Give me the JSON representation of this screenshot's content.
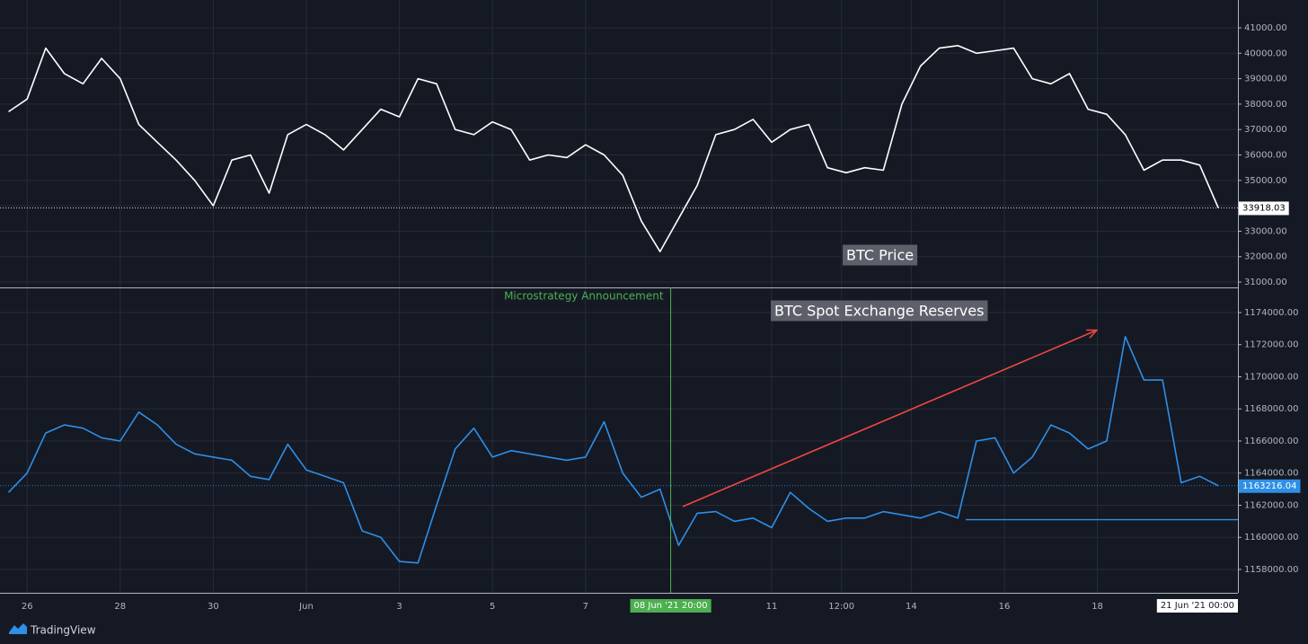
{
  "chart_data": [
    {
      "type": "line",
      "x": [
        -0.4,
        0,
        0.4,
        0.8,
        1.2,
        1.6,
        2,
        2.4,
        2.8,
        3.2,
        3.6,
        4,
        4.4,
        4.8,
        5.2,
        5.6,
        6,
        6.4,
        6.8,
        7.2,
        7.6,
        8,
        8.4,
        8.8,
        9.2,
        9.6,
        10,
        10.4,
        10.8,
        11.2,
        11.6,
        12,
        12.4,
        12.8,
        13.2,
        13.6,
        14,
        14.4,
        14.8,
        15.2,
        15.6,
        16,
        16.4,
        16.8,
        17.2,
        17.6,
        18,
        18.4,
        18.8,
        19.2,
        19.6,
        20,
        20.4,
        20.8,
        21.2,
        21.6,
        22,
        22.4,
        22.8,
        23.2,
        23.6,
        24,
        24.4,
        24.8,
        25.2,
        25.6
      ],
      "series": [
        {
          "name": "BTC Price",
          "color": "#ffffff",
          "values": [
            37700,
            38200,
            40200,
            39200,
            38800,
            39800,
            39000,
            37200,
            36500,
            35800,
            35000,
            34000,
            35800,
            36000,
            34500,
            36800,
            37200,
            36800,
            36200,
            37000,
            37800,
            37500,
            39000,
            38800,
            37000,
            36800,
            37300,
            37000,
            35800,
            36000,
            35900,
            36400,
            36000,
            35200,
            33400,
            32200,
            33500,
            34800,
            36800,
            37000,
            37400,
            36500,
            37000,
            37200,
            35500,
            35300,
            35500,
            35400,
            38000,
            39500,
            40200,
            40300,
            40000,
            40100,
            40200,
            39000,
            38800,
            39200,
            37800,
            37600,
            36800,
            35400,
            35800,
            35800,
            35600,
            33918.03
          ]
        }
      ],
      "xlim": [
        -0.39,
        26.02
      ],
      "ylim": [
        30790,
        42095
      ],
      "yticks": [
        {
          "value": 31000,
          "label": "31000.00"
        },
        {
          "value": 32000,
          "label": "32000.00"
        },
        {
          "value": 33000,
          "label": "33000.00"
        },
        {
          "value": 34000,
          "label": "34000.00"
        },
        {
          "value": 35000,
          "label": "35000.00"
        },
        {
          "value": 36000,
          "label": "36000.00"
        },
        {
          "value": 37000,
          "label": "37000.00"
        },
        {
          "value": 38000,
          "label": "38000.00"
        },
        {
          "value": 39000,
          "label": "39000.00"
        },
        {
          "value": 40000,
          "label": "40000.00"
        },
        {
          "value": 41000,
          "label": "41000.00"
        }
      ],
      "grid": true
    },
    {
      "type": "line",
      "x": [
        -0.4,
        0,
        0.4,
        0.8,
        1.2,
        1.6,
        2,
        2.4,
        2.8,
        3.2,
        3.6,
        4,
        4.4,
        4.8,
        5.2,
        5.6,
        6,
        6.4,
        6.8,
        7.2,
        7.6,
        8,
        8.4,
        8.8,
        9.2,
        9.6,
        10,
        10.4,
        10.8,
        11.2,
        11.6,
        12,
        12.4,
        12.8,
        13.2,
        13.6,
        14,
        14.4,
        14.8,
        15.2,
        15.6,
        16,
        16.4,
        16.8,
        17.2,
        17.6,
        18,
        18.4,
        18.8,
        19.2,
        19.6,
        20,
        20.4,
        20.8,
        21.2,
        21.6,
        22,
        22.4,
        22.8,
        23.2,
        23.6,
        24,
        24.4,
        24.8,
        25.2,
        25.6
      ],
      "series": [
        {
          "name": "BTC Spot Exchange Reserves",
          "color": "#2e8fe6",
          "values": [
            1162800,
            1164000,
            1166500,
            1167000,
            1166800,
            1166200,
            1166000,
            1167800,
            1167000,
            1165800,
            1165200,
            1165000,
            1164800,
            1163800,
            1163600,
            1165800,
            1164200,
            1163800,
            1163400,
            1160400,
            1160000,
            1158500,
            1158400,
            1162000,
            1165500,
            1166800,
            1165000,
            1165400,
            1165200,
            1165000,
            1164800,
            1165000,
            1167200,
            1164000,
            1162500,
            1163000,
            1159500,
            1161500,
            1161600,
            1161000,
            1161200,
            1160600,
            1162800,
            1161800,
            1161000,
            1161200,
            1161200,
            1161600,
            1161400,
            1161200,
            1161600,
            1161200,
            1166000,
            1166200,
            1164000,
            1165000,
            1167000,
            1166500,
            1165500,
            1166000,
            1172500,
            1169800,
            1169800,
            1163400,
            1163800,
            1163216.04
          ]
        }
      ],
      "xlim": [
        -0.39,
        26.02
      ],
      "ylim": [
        1156545,
        1175566
      ],
      "yticks": [
        {
          "value": 1158000,
          "label": "1158000.00"
        },
        {
          "value": 1160000,
          "label": "1160000.00"
        },
        {
          "value": 1162000,
          "label": "1162000.00"
        },
        {
          "value": 1164000,
          "label": "1164000.00"
        },
        {
          "value": 1166000,
          "label": "1166000.00"
        },
        {
          "value": 1168000,
          "label": "1168000.00"
        },
        {
          "value": 1170000,
          "label": "1170000.00"
        },
        {
          "value": 1172000,
          "label": "1172000.00"
        },
        {
          "value": 1174000,
          "label": "1174000.00"
        }
      ],
      "xticks": [
        {
          "value": 0,
          "label": "26"
        },
        {
          "value": 2,
          "label": "28"
        },
        {
          "value": 4,
          "label": "30"
        },
        {
          "value": 6,
          "label": "Jun"
        },
        {
          "value": 8,
          "label": "3"
        },
        {
          "value": 10,
          "label": "5"
        },
        {
          "value": 12,
          "label": "7"
        },
        {
          "value": 16,
          "label": "11"
        },
        {
          "value": 17.5,
          "label": "12:00"
        },
        {
          "value": 19,
          "label": "14"
        },
        {
          "value": 21,
          "label": "16"
        },
        {
          "value": 23,
          "label": "18"
        }
      ],
      "grid": true,
      "announcement": {
        "label": "Microstrategy Announcement",
        "x": 13.83,
        "date_label": "08 Jun '21  20:00",
        "color": "#4caf50"
      },
      "support": {
        "value": 1161100,
        "x_start": 20.17
      },
      "cursor_label": "21 Jun '21  00:00"
    }
  ],
  "brand": "TradingView"
}
